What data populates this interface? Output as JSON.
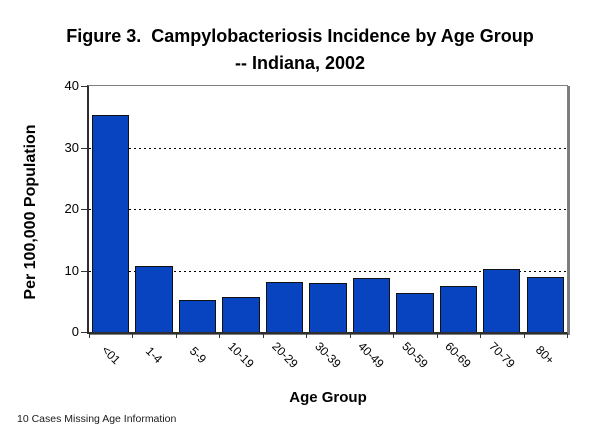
{
  "figure": {
    "footnote": "10 Cases Missing Age Information"
  },
  "chart_data": {
    "type": "bar",
    "title": "Figure 3.  Campylobacteriosis Incidence by Age Group",
    "subtitle": "-- Indiana, 2002",
    "categories": [
      "<01",
      "1-4",
      "5-9",
      "10-19",
      "20-29",
      "30-39",
      "40-49",
      "50-59",
      "60-69",
      "70-79",
      "80+"
    ],
    "values": [
      35.3,
      10.7,
      5.2,
      5.7,
      8.2,
      8.0,
      8.7,
      6.4,
      7.4,
      10.2,
      9.0
    ],
    "xlabel": "Age Group",
    "ylabel": "Per 100,000 Population",
    "ylim": [
      0,
      40
    ],
    "yticks": [
      0,
      10,
      20,
      30,
      40
    ],
    "grid_values": [
      10,
      20,
      30
    ],
    "grid_style": "dotted",
    "legend": "none",
    "bar_color": "#0844c0",
    "bar_border_color": "#111111"
  }
}
